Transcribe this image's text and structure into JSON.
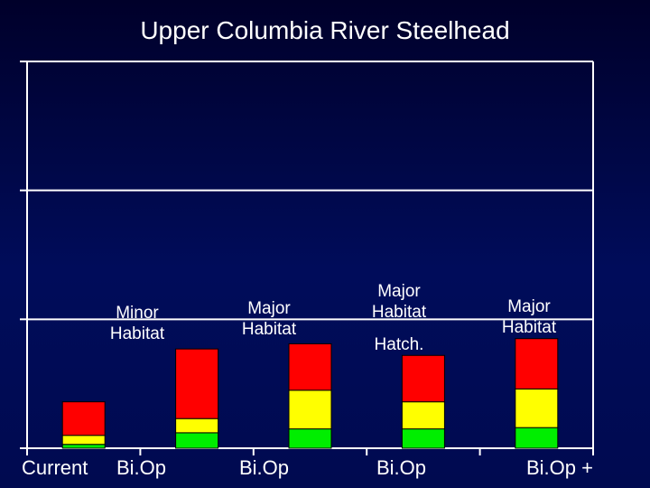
{
  "chart_data": {
    "type": "bar",
    "stacked": true,
    "title": "Upper Columbia River Steelhead",
    "categories": [
      "Current",
      "Bi.Op",
      "Bi.Op",
      "Bi.Op",
      "Bi.Op +"
    ],
    "series": [
      {
        "color": "#00ee00",
        "values": [
          0.3,
          1.2,
          1.5,
          1.5,
          1.6
        ]
      },
      {
        "color": "#ffff00",
        "values": [
          0.7,
          1.1,
          3.0,
          2.1,
          3.0
        ]
      },
      {
        "color": "#ff0000",
        "values": [
          2.6,
          5.4,
          3.6,
          3.6,
          3.9
        ]
      }
    ],
    "annotations": [
      {
        "category_index": 1,
        "lines": [
          "Minor",
          "Habitat"
        ]
      },
      {
        "category_index": 2,
        "lines": [
          "Major",
          "Habitat"
        ]
      },
      {
        "category_index": 3,
        "lines": [
          "Major",
          "Habitat"
        ]
      },
      {
        "category_index": 3,
        "lines": [
          "Hatch."
        ]
      },
      {
        "category_index": 4,
        "lines": [
          "Major",
          "Habitat"
        ]
      }
    ],
    "ylim": [
      0,
      30
    ],
    "grid": true,
    "legend": "none",
    "colors": {
      "axis": "#ffffff",
      "grid": "#ffffff"
    }
  }
}
